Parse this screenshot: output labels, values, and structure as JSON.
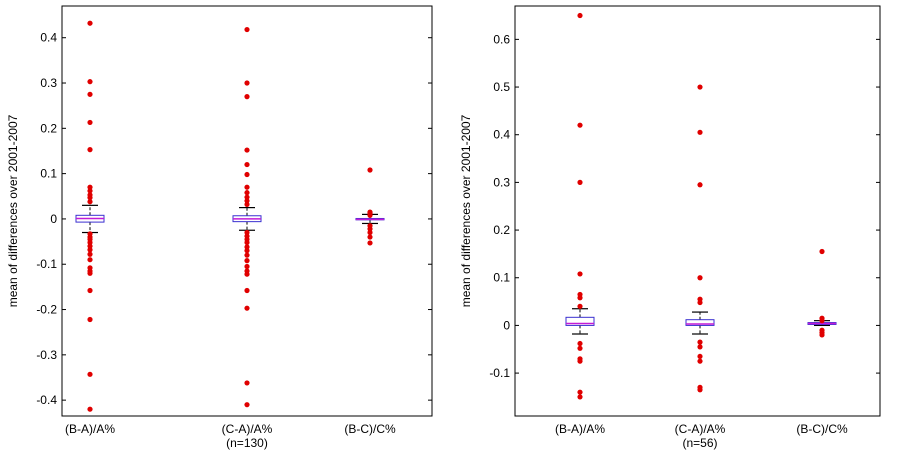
{
  "chart_data": [
    {
      "type": "box",
      "ylabel": "mean of differences over 2001-2007",
      "ylim": [
        -0.435,
        0.47
      ],
      "yticks": [
        -0.4,
        -0.3,
        -0.2,
        -0.1,
        0,
        0.1,
        0.2,
        0.3,
        0.4
      ],
      "ytick_labels": [
        "-0.4",
        "-0.3",
        "-0.2",
        "-0.1",
        "0",
        "0.1",
        "0.2",
        "0.3",
        "0.4"
      ],
      "categories": [
        {
          "label": "(B-A)/A%",
          "sublabel": ""
        },
        {
          "label": "(C-A)/A%",
          "sublabel": "(n=130)"
        },
        {
          "label": "(B-C)/C%",
          "sublabel": ""
        }
      ],
      "boxes": [
        {
          "q1": -0.007,
          "median": 0.001,
          "q3": 0.008,
          "whisker_low": -0.03,
          "whisker_high": 0.03,
          "outliers": [
            0.432,
            0.303,
            0.275,
            0.213,
            0.153,
            0.07,
            0.062,
            0.053,
            0.047,
            0.038,
            -0.033,
            -0.04,
            -0.045,
            -0.052,
            -0.06,
            -0.068,
            -0.078,
            -0.09,
            -0.108,
            -0.115,
            -0.12,
            -0.158,
            -0.222,
            -0.343,
            -0.42
          ]
        },
        {
          "q1": -0.006,
          "median": 0.0,
          "q3": 0.007,
          "whisker_low": -0.025,
          "whisker_high": 0.025,
          "outliers": [
            0.418,
            0.3,
            0.27,
            0.152,
            0.12,
            0.098,
            0.07,
            0.058,
            0.048,
            0.04,
            0.032,
            -0.03,
            -0.038,
            -0.045,
            -0.052,
            -0.062,
            -0.07,
            -0.08,
            -0.092,
            -0.105,
            -0.115,
            -0.122,
            -0.158,
            -0.197,
            -0.362,
            -0.41
          ]
        },
        {
          "q1": -0.002,
          "median": -0.001,
          "q3": 0.001,
          "whisker_low": -0.01,
          "whisker_high": 0.01,
          "outliers": [
            0.108,
            0.015,
            0.012,
            0.008,
            -0.015,
            -0.022,
            -0.03,
            -0.04,
            -0.053
          ]
        }
      ]
    },
    {
      "type": "box",
      "ylabel": "mean of differences over 2001-2007",
      "ylim": [
        -0.19,
        0.67
      ],
      "yticks": [
        -0.1,
        0,
        0.1,
        0.2,
        0.3,
        0.4,
        0.5,
        0.6
      ],
      "ytick_labels": [
        "-0.1",
        "0",
        "0.1",
        "0.2",
        "0.3",
        "0.4",
        "0.5",
        "0.6"
      ],
      "categories": [
        {
          "label": "(B-A)/A%",
          "sublabel": ""
        },
        {
          "label": "(C-A)/A%",
          "sublabel": "(n=56)"
        },
        {
          "label": "(B-C)/C%",
          "sublabel": ""
        }
      ],
      "boxes": [
        {
          "q1": 0.0,
          "median": 0.004,
          "q3": 0.017,
          "whisker_low": -0.018,
          "whisker_high": 0.035,
          "outliers": [
            0.65,
            0.42,
            0.3,
            0.108,
            0.065,
            0.058,
            0.04,
            -0.038,
            -0.048,
            -0.07,
            -0.075,
            -0.14,
            -0.15
          ]
        },
        {
          "q1": 0.0,
          "median": 0.003,
          "q3": 0.012,
          "whisker_low": -0.018,
          "whisker_high": 0.028,
          "outliers": [
            0.5,
            0.405,
            0.295,
            0.1,
            0.055,
            0.048,
            -0.035,
            -0.045,
            -0.065,
            -0.075,
            -0.13,
            -0.135
          ]
        },
        {
          "q1": 0.002,
          "median": 0.004,
          "q3": 0.006,
          "whisker_low": 0.0,
          "whisker_high": 0.01,
          "outliers": [
            0.155,
            0.015,
            0.01,
            -0.01,
            -0.015,
            -0.02
          ]
        }
      ]
    }
  ],
  "colors": {
    "box": "#3a2fd0",
    "median": "#c21ad6",
    "whisker": "#000000",
    "outlier": "#e00000",
    "axes": "#000000"
  }
}
